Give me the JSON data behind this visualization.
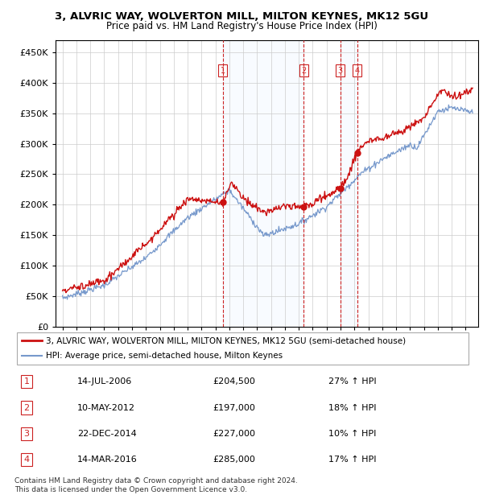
{
  "title1": "3, ALVRIC WAY, WOLVERTON MILL, MILTON KEYNES, MK12 5GU",
  "title2": "Price paid vs. HM Land Registry's House Price Index (HPI)",
  "legend_line1": "3, ALVRIC WAY, WOLVERTON MILL, MILTON KEYNES, MK12 5GU (semi-detached house)",
  "legend_line2": "HPI: Average price, semi-detached house, Milton Keynes",
  "table": [
    {
      "num": "1",
      "date": "14-JUL-2006",
      "price": "£204,500",
      "change": "27% ↑ HPI"
    },
    {
      "num": "2",
      "date": "10-MAY-2012",
      "price": "£197,000",
      "change": "18% ↑ HPI"
    },
    {
      "num": "3",
      "date": "22-DEC-2014",
      "price": "£227,000",
      "change": "10% ↑ HPI"
    },
    {
      "num": "4",
      "date": "14-MAR-2016",
      "price": "£285,000",
      "change": "17% ↑ HPI"
    }
  ],
  "sale_years": [
    2006.54,
    2012.36,
    2014.98,
    2016.2
  ],
  "sale_prices": [
    204500,
    197000,
    227000,
    285000
  ],
  "footnote": "Contains HM Land Registry data © Crown copyright and database right 2024.\nThis data is licensed under the Open Government Licence v3.0.",
  "red_color": "#cc1111",
  "blue_color": "#7799cc",
  "shade_color": "#ddeeff",
  "ylim": [
    0,
    470000
  ],
  "xlim_start": 1994.5,
  "xlim_end": 2024.9
}
